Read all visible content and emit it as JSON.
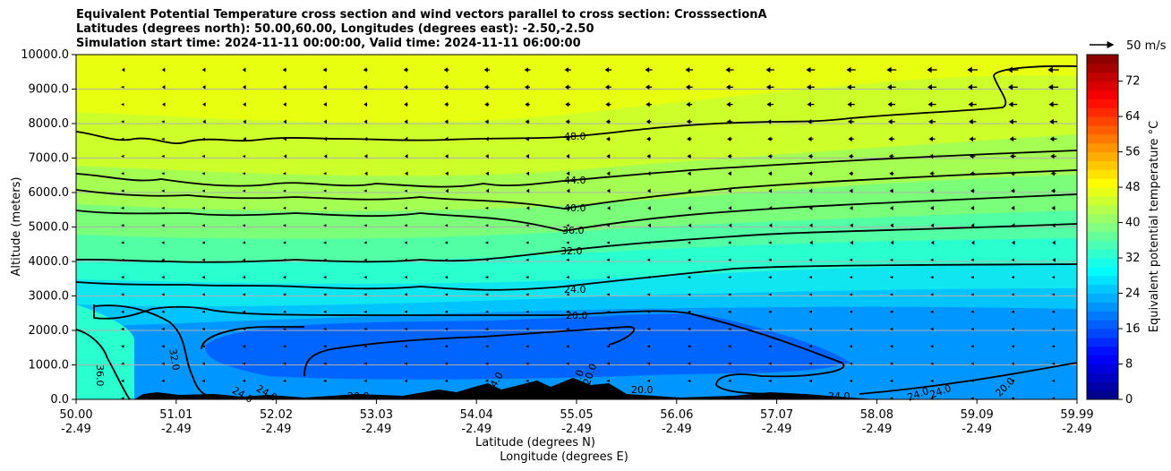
{
  "chart_data": {
    "type": "heatmap",
    "title_lines": [
      "Equivalent Potential Temperature cross section and wind vectors parallel to cross section: CrosssectionA",
      "Latitudes (degrees north): 50.00,60.00, Longitudes (degrees east): -2.50,-2.50",
      "Simulation start time: 2024-11-11 00:00:00, Valid time: 2024-11-11 06:00:00"
    ],
    "ylabel": "Altitude (meters)",
    "xlabel_lines": [
      "Latitude (degrees N)",
      "Longitude (degrees E)"
    ],
    "ylim": [
      0,
      10000
    ],
    "y_ticks": [
      "0.0",
      "1000.0",
      "2000.0",
      "3000.0",
      "4000.0",
      "5000.0",
      "6000.0",
      "7000.0",
      "8000.0",
      "9000.0",
      "10000.0"
    ],
    "x_ticks": [
      {
        "lat": "50.00",
        "lon": "-2.49"
      },
      {
        "lat": "51.01",
        "lon": "-2.49"
      },
      {
        "lat": "52.02",
        "lon": "-2.49"
      },
      {
        "lat": "53.03",
        "lon": "-2.49"
      },
      {
        "lat": "54.04",
        "lon": "-2.49"
      },
      {
        "lat": "55.05",
        "lon": "-2.49"
      },
      {
        "lat": "56.06",
        "lon": "-2.49"
      },
      {
        "lat": "57.07",
        "lon": "-2.49"
      },
      {
        "lat": "58.08",
        "lon": "-2.49"
      },
      {
        "lat": "59.09",
        "lon": "-2.49"
      },
      {
        "lat": "59.99",
        "lon": "-2.49"
      }
    ],
    "grid": "horizontal",
    "colorbar": {
      "label": "Equivalent potential temperature $^\\circ$C",
      "ticks": [
        "0",
        "8",
        "16",
        "24",
        "32",
        "40",
        "48",
        "56",
        "64",
        "72"
      ],
      "range": [
        0,
        78
      ]
    },
    "quiver_key": "50 m/s",
    "contour_labels": [
      "48.0",
      "44.0",
      "40.0",
      "36.0",
      "32.0",
      "24.0",
      "20.0",
      "36.0",
      "32.0",
      "24.0",
      "24.0",
      "20.0",
      "20.0",
      "24.0",
      "24.0",
      "20.0",
      "20.0",
      "24.0",
      "24.0",
      "24.0",
      "20.0"
    ],
    "contour_levels": [
      48,
      44,
      40,
      36,
      32,
      24,
      20
    ]
  }
}
